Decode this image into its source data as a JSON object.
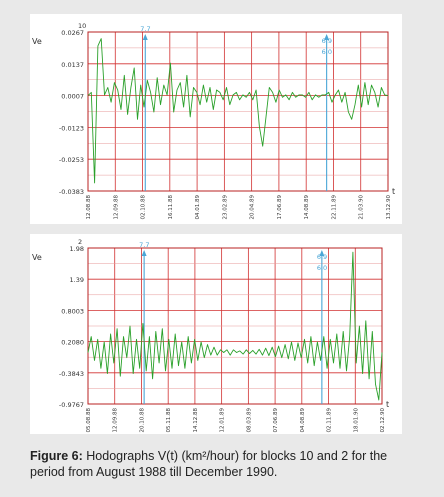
{
  "chart_data": [
    {
      "type": "line",
      "block": "10",
      "ylabel": "Ve",
      "xlabel": "t",
      "series_color": "#2aa02a",
      "y_ticks": [
        "0.0267",
        "0.0137",
        "0.0007",
        "-0.0123",
        "-0.0253",
        "-0.0383"
      ],
      "ylim": [
        -0.0383,
        0.0267
      ],
      "x_ticks": [
        "12.08.88",
        "12.09.88",
        "02.10.88",
        "16.11.88",
        "04.01.89",
        "23.02.89",
        "20.04.89",
        "17.06.89",
        "14.08.89",
        "22.11.89",
        "21.03.90",
        "13.12.90"
      ],
      "markers": [
        {
          "label": "7.7",
          "x_index": 2.1
        },
        {
          "label": "6.9",
          "x_index": 8.75
        },
        {
          "label": "6.0",
          "x_index": 8.75
        }
      ],
      "values": [
        0.0007,
        0.002,
        -0.035,
        0.021,
        0.024,
        0.001,
        0.004,
        -0.002,
        0.006,
        0.003,
        -0.005,
        0.009,
        -0.007,
        0.004,
        0.012,
        -0.009,
        0.005,
        -0.004,
        0.007,
        0.002,
        -0.006,
        0.008,
        -0.003,
        0.005,
        0.001,
        0.014,
        -0.006,
        0.003,
        0.006,
        -0.004,
        0.009,
        -0.008,
        0.004,
        0.002,
        -0.003,
        0.005,
        -0.002,
        0.004,
        -0.005,
        0.003,
        0.002,
        -0.001,
        0.004,
        -0.003,
        0.001,
        0.002,
        -0.001,
        0.001,
        0.0,
        0.002,
        -0.001,
        0.003,
        -0.012,
        -0.02,
        -0.008,
        0.004,
        0.002,
        -0.002,
        0.003,
        0.0,
        0.001,
        -0.001,
        0.002,
        0.0,
        0.001,
        0.001,
        0.0,
        0.002,
        -0.001,
        0.001,
        0.0,
        0.001,
        0.001,
        0.002,
        -0.002,
        0.001,
        0.003,
        -0.002,
        0.002,
        -0.006,
        -0.009,
        -0.003,
        0.005,
        -0.004,
        0.006,
        -0.003,
        0.005,
        0.002,
        -0.004,
        0.004,
        0.001,
        0.0007
      ]
    },
    {
      "type": "line",
      "block": "2",
      "ylabel": "Ve",
      "xlabel": "t",
      "series_color": "#2aa02a",
      "y_ticks": [
        "1.98",
        "1.39",
        "0.8003",
        "0.2080",
        "-0.3843",
        "-0.9767"
      ],
      "ylim": [
        -0.9767,
        1.98
      ],
      "x_ticks": [
        "05.08.88",
        "12.09.88",
        "20.10.88",
        "05.11.88",
        "14.12.88",
        "12.01.89",
        "08.03.89",
        "07.06.89",
        "04.08.89",
        "02.11.89",
        "18.01.90",
        "02.12.90"
      ],
      "markers": [
        {
          "label": "7.7",
          "x_index": 2.1
        },
        {
          "label": "6.9",
          "x_index": 8.75
        },
        {
          "label": "6.0",
          "x_index": 8.75
        }
      ],
      "values": [
        0.0,
        0.3,
        -0.15,
        0.25,
        -0.3,
        0.2,
        -0.4,
        0.35,
        -0.2,
        0.45,
        -0.45,
        0.3,
        -0.1,
        0.5,
        -0.4,
        0.25,
        -0.3,
        0.55,
        -0.35,
        0.3,
        -0.5,
        0.4,
        -0.2,
        0.45,
        -0.35,
        0.25,
        -0.3,
        0.35,
        -0.25,
        0.2,
        -0.3,
        0.3,
        -0.2,
        0.25,
        -0.15,
        0.2,
        -0.1,
        0.15,
        -0.05,
        0.1,
        -0.05,
        0.05,
        0.0,
        0.05,
        -0.05,
        0.05,
        0.0,
        0.03,
        -0.03,
        0.05,
        -0.02,
        0.04,
        -0.03,
        0.06,
        -0.05,
        0.08,
        -0.06,
        0.1,
        -0.08,
        0.12,
        -0.1,
        0.15,
        -0.12,
        0.2,
        -0.15,
        0.18,
        -0.1,
        0.25,
        -0.2,
        0.3,
        -0.25,
        0.2,
        -0.15,
        0.3,
        -0.3,
        0.25,
        -0.2,
        0.35,
        -0.3,
        0.4,
        -0.35,
        0.3,
        1.9,
        -0.2,
        0.5,
        -0.4,
        0.6,
        -0.5,
        0.4,
        -0.6,
        -0.9,
        0.0
      ]
    }
  ],
  "caption": {
    "label": "Figure 6:",
    "text": " Hodographs V(t) (km²/hour) for blocks 10 and 2 for the period from August 1988 till December 1990."
  }
}
